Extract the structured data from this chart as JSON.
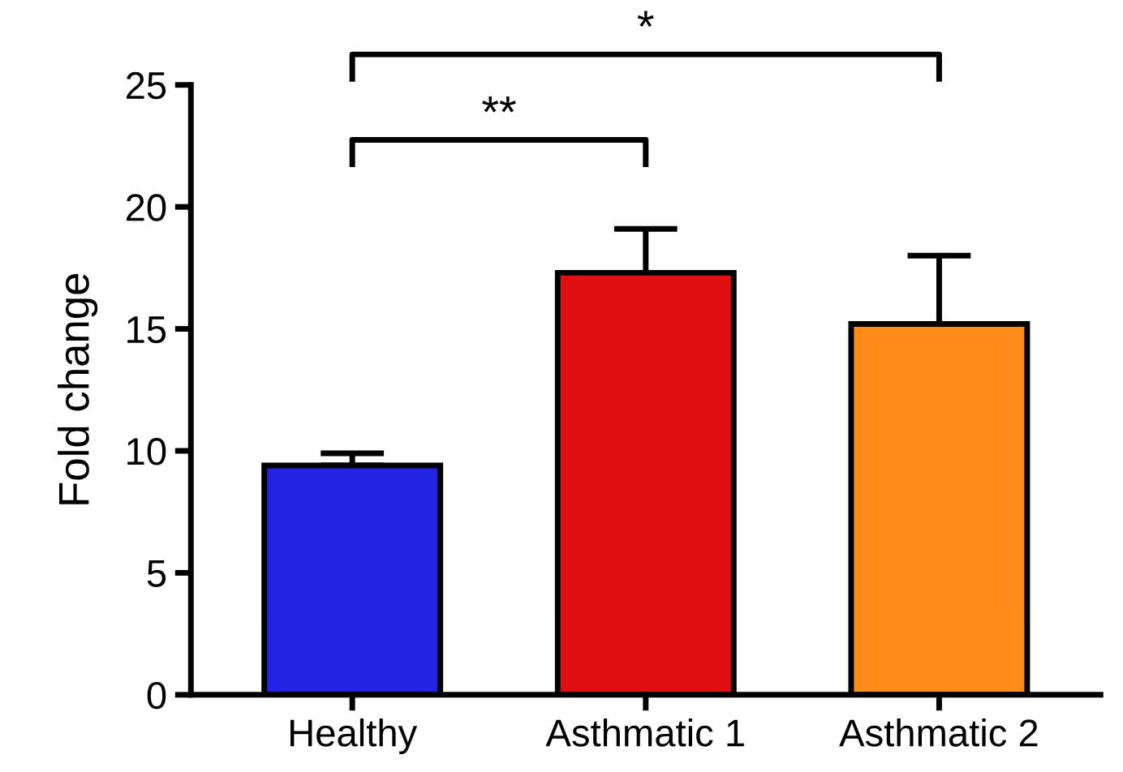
{
  "chart_data": {
    "type": "bar",
    "ylabel": "Fold change",
    "categories": [
      "Healthy",
      "Asthmatic 1",
      "Asthmatic 2"
    ],
    "values": [
      9.4,
      17.3,
      15.2
    ],
    "errors": [
      0.5,
      1.8,
      2.8
    ],
    "colors": [
      "#2323e6",
      "#e01010",
      "#ff8c1a"
    ],
    "ylim": [
      0,
      25
    ],
    "yticks": [
      0,
      5,
      10,
      15,
      20,
      25
    ],
    "grid": false,
    "annotations": [
      "**",
      "*"
    ]
  }
}
